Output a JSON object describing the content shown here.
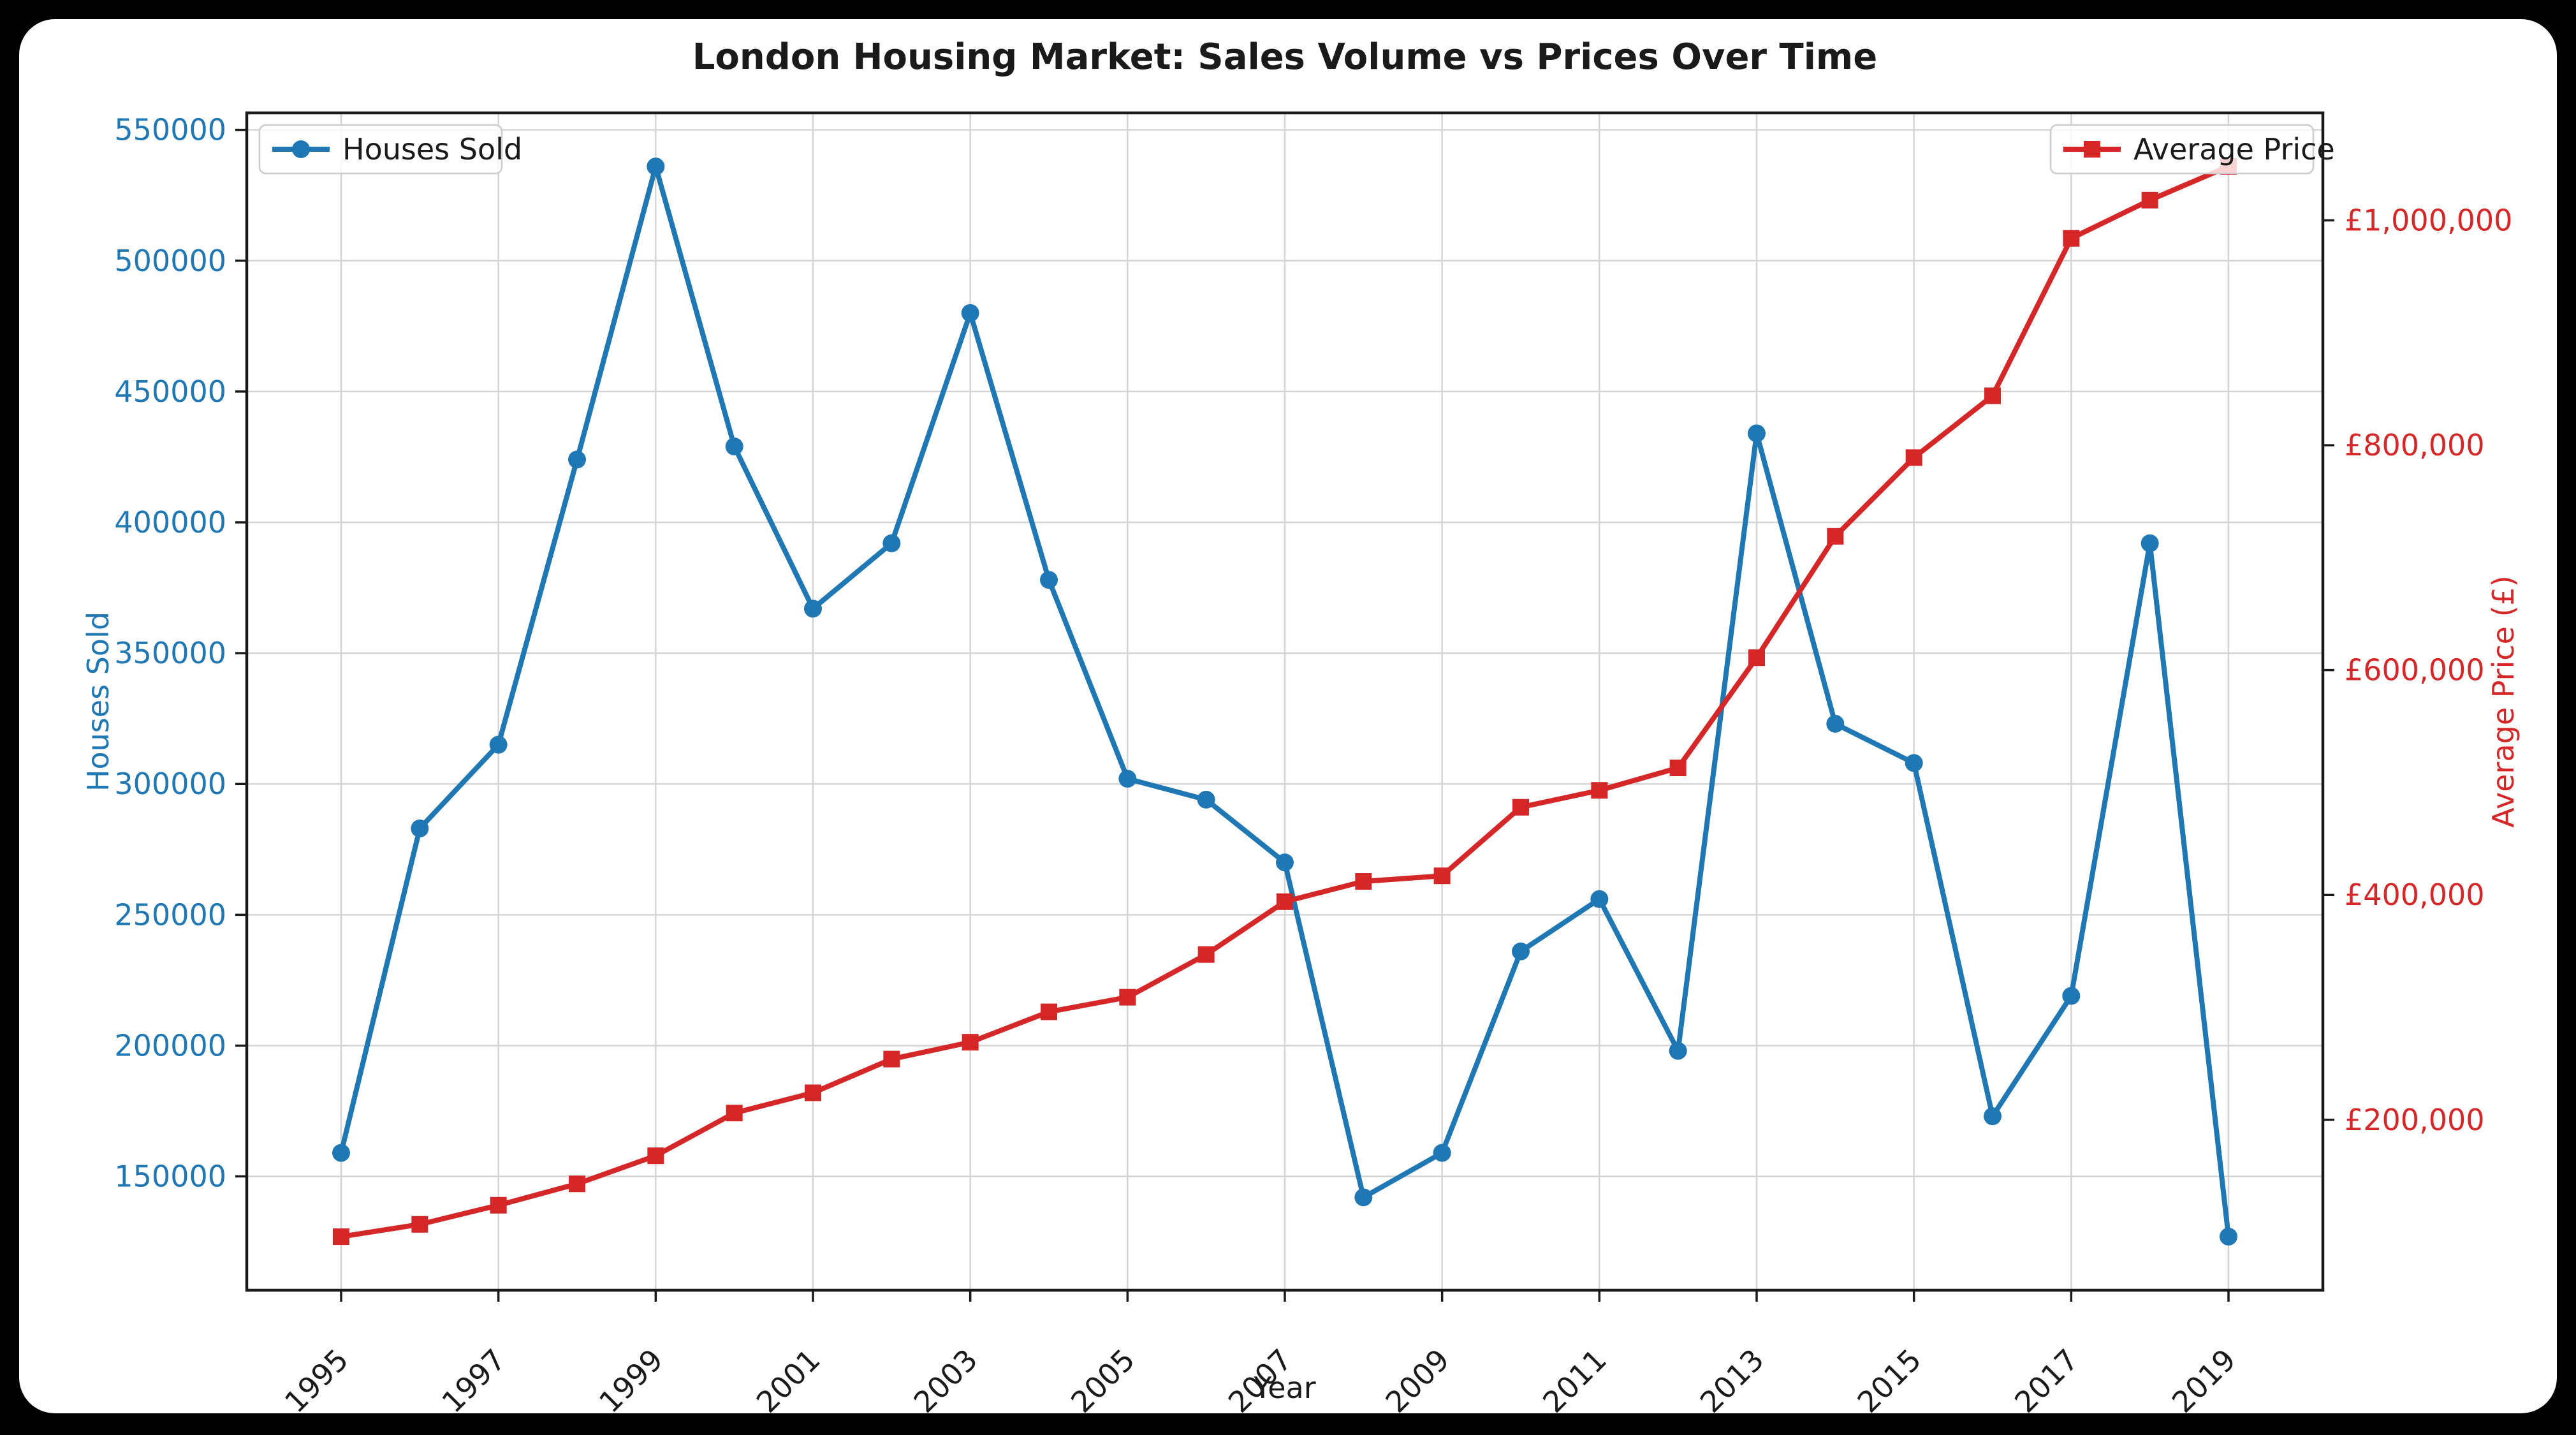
{
  "title": "London Housing Market: Sales Volume vs Prices Over Time",
  "chart_data": {
    "type": "line",
    "title": "London Housing Market: Sales Volume vs Prices Over Time",
    "xlabel": "Year",
    "ylabel_left": "Houses Sold",
    "ylabel_right": "Average Price (£)",
    "grid": true,
    "legend_position_left": "upper left",
    "legend_position_right": "upper right",
    "x": [
      1995,
      1996,
      1997,
      1998,
      1999,
      2000,
      2001,
      2002,
      2003,
      2004,
      2005,
      2006,
      2007,
      2008,
      2009,
      2010,
      2011,
      2012,
      2013,
      2014,
      2015,
      2016,
      2017,
      2018,
      2019
    ],
    "x_lim": [
      1993.8,
      2020.2
    ],
    "x_ticks": [
      1995,
      1997,
      1999,
      2001,
      2003,
      2005,
      2007,
      2009,
      2011,
      2013,
      2015,
      2017,
      2019
    ],
    "x_tick_labels": [
      "1995",
      "1997",
      "1999",
      "2001",
      "2003",
      "2005",
      "2007",
      "2009",
      "2011",
      "2013",
      "2015",
      "2017",
      "2019"
    ],
    "y_left": {
      "lim": [
        106500,
        556500
      ],
      "ticks": [
        150000,
        200000,
        250000,
        300000,
        350000,
        400000,
        450000,
        500000,
        550000
      ],
      "tick_labels": [
        "150000",
        "200000",
        "250000",
        "300000",
        "350000",
        "400000",
        "450000",
        "500000",
        "550000"
      ],
      "color": "#1f77b4"
    },
    "y_right": {
      "lim": [
        48400,
        1095600
      ],
      "ticks": [
        200000,
        400000,
        600000,
        800000,
        1000000
      ],
      "tick_labels": [
        "£200,000",
        "£400,000",
        "£600,000",
        "£800,000",
        "£1,000,000"
      ],
      "color": "#d62728"
    },
    "series": [
      {
        "name": "Houses Sold",
        "axis": "left",
        "color": "#1f77b4",
        "marker": "circle",
        "values": [
          159000,
          283000,
          315000,
          424000,
          536000,
          429000,
          367000,
          392000,
          480000,
          378000,
          302000,
          294000,
          270000,
          142000,
          159000,
          236000,
          256000,
          198000,
          434000,
          323000,
          308000,
          173000,
          219000,
          392000,
          127000
        ]
      },
      {
        "name": "Average Price",
        "axis": "right",
        "color": "#d62728",
        "marker": "square",
        "values": [
          96000,
          107000,
          124000,
          143000,
          168000,
          206000,
          224000,
          254000,
          269000,
          296000,
          309000,
          347000,
          394000,
          412000,
          417000,
          478000,
          493000,
          513000,
          611000,
          719000,
          789000,
          844000,
          984000,
          1018000,
          1048000
        ]
      }
    ],
    "style": {
      "grid_color": "#d4d4d4",
      "spine_color": "#1a1a1a",
      "background": "#ffffff"
    }
  }
}
